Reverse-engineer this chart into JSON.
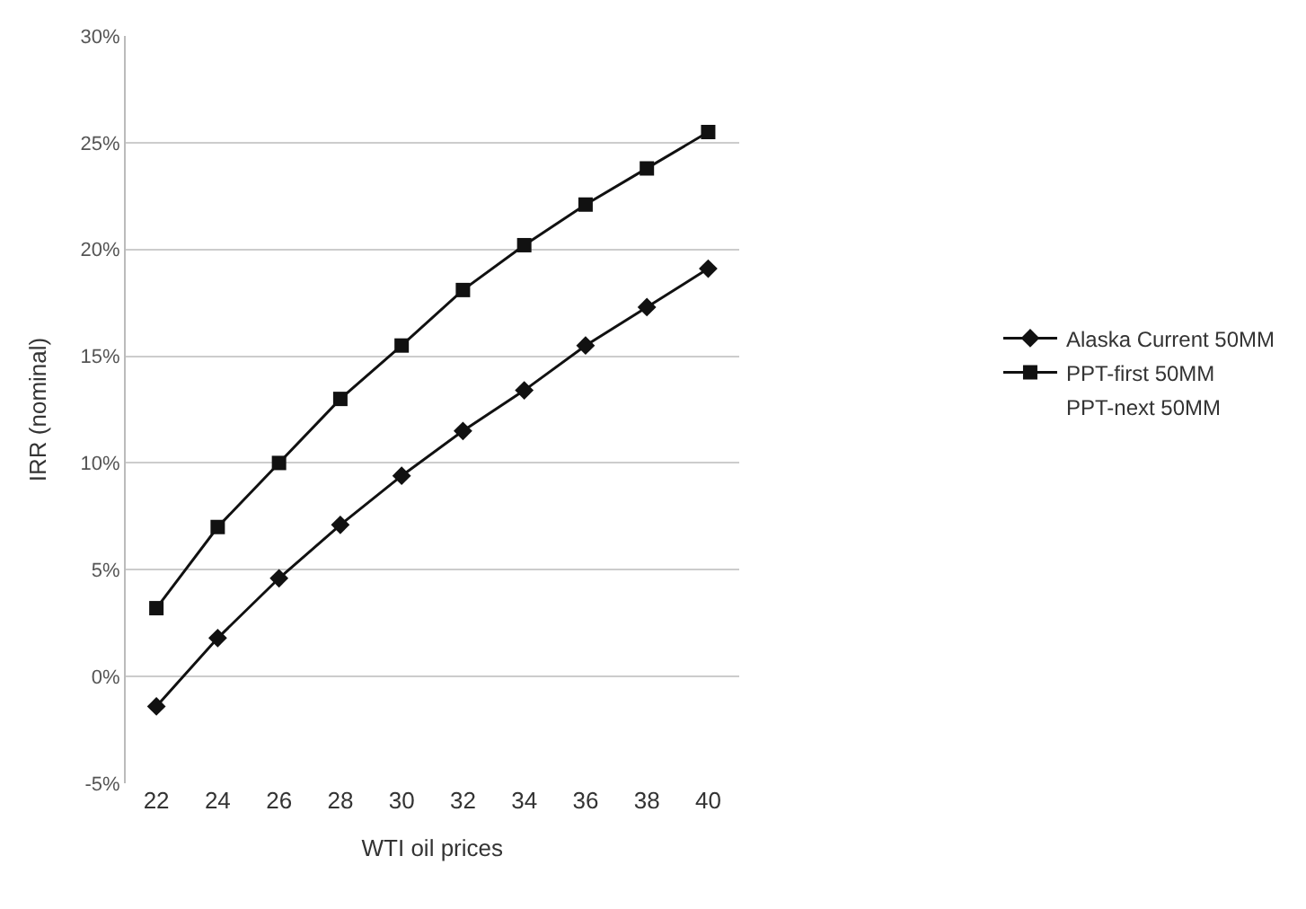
{
  "chart_data": {
    "type": "line",
    "xlabel": "WTI oil prices",
    "ylabel": "IRR (nominal)",
    "categories": [
      "22",
      "24",
      "26",
      "28",
      "30",
      "32",
      "34",
      "36",
      "38",
      "40"
    ],
    "series": [
      {
        "name": "Alaska Current 50MM",
        "color": "#111111",
        "marker": "diamond",
        "values": [
          -1.4,
          1.8,
          4.6,
          7.1,
          9.4,
          11.5,
          13.4,
          15.5,
          17.3,
          19.1
        ]
      },
      {
        "name": "PPT-first 50MM",
        "color": "#111111",
        "marker": "square",
        "values": [
          3.2,
          7.0,
          10.0,
          13.0,
          15.5,
          18.1,
          20.2,
          22.1,
          23.8,
          25.5
        ]
      },
      {
        "name": "PPT-next 50MM",
        "marker": "none",
        "values": [
          null,
          null,
          null,
          null,
          null,
          null,
          null,
          null,
          null,
          null
        ]
      }
    ],
    "ylim": [
      -5,
      30
    ],
    "yticks": [
      {
        "value": -5,
        "label": "-5%"
      },
      {
        "value": 0,
        "label": "0%"
      },
      {
        "value": 5,
        "label": "5%"
      },
      {
        "value": 10,
        "label": "10%"
      },
      {
        "value": 15,
        "label": "15%"
      },
      {
        "value": 20,
        "label": "20%"
      },
      {
        "value": 25,
        "label": "25%"
      },
      {
        "value": 30,
        "label": "30%"
      }
    ],
    "grid": "y",
    "legend": "right",
    "line_style": "solid"
  }
}
